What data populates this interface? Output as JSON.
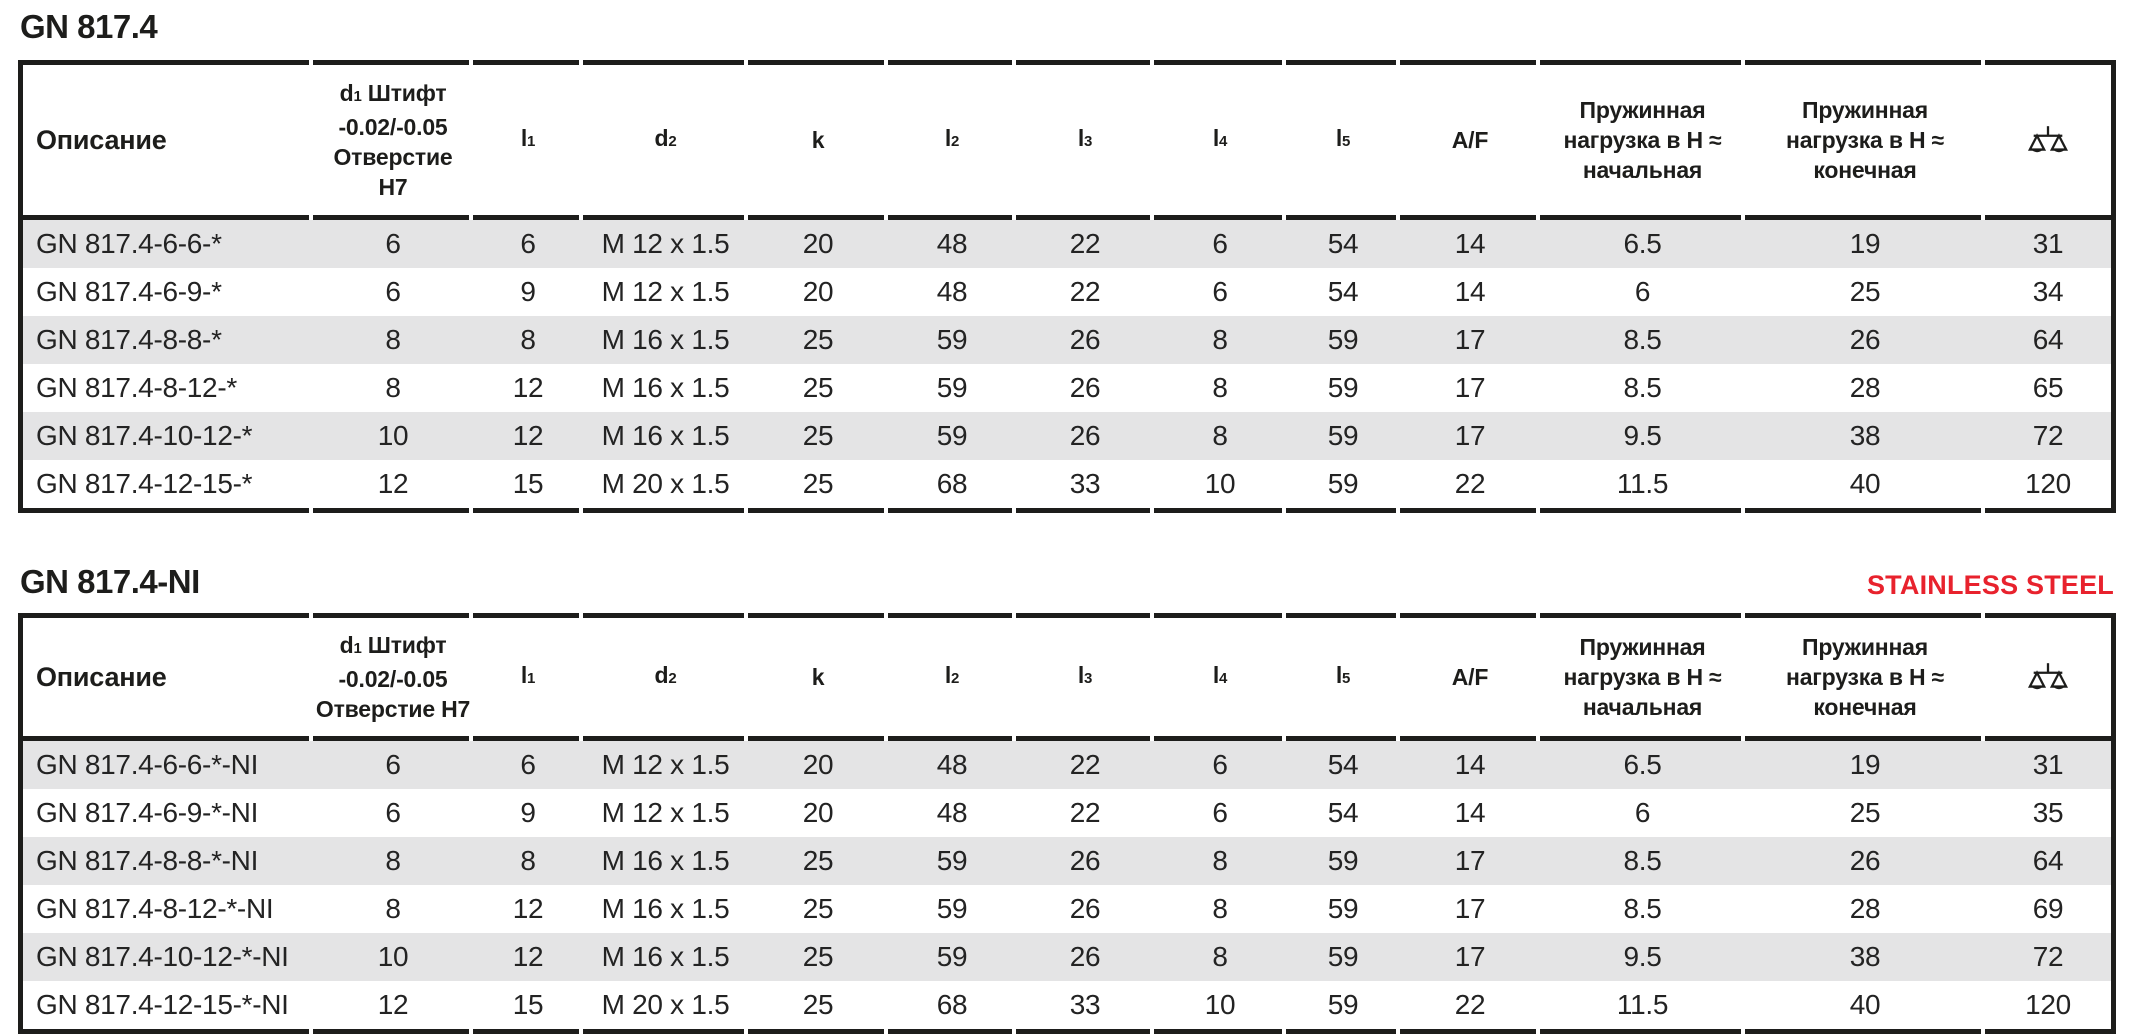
{
  "colors": {
    "ink": "#1d1d1b",
    "row_shade": "#e4e4e5",
    "stainless_red": "#e8222d"
  },
  "table1": {
    "title": "GN 817.4",
    "columns": [
      {
        "id": "description",
        "label": "Описание",
        "align": "left"
      },
      {
        "id": "d1",
        "label": "d~1~ Штифт\n-0.02/-0.05\nОтверстие\nH7"
      },
      {
        "id": "l1",
        "label": "l~1~"
      },
      {
        "id": "d2",
        "label": "d~2~"
      },
      {
        "id": "k",
        "label": "k"
      },
      {
        "id": "l2",
        "label": "l~2~"
      },
      {
        "id": "l3",
        "label": "l~3~"
      },
      {
        "id": "l4",
        "label": "l~4~"
      },
      {
        "id": "l5",
        "label": "l~5~"
      },
      {
        "id": "af",
        "label": "A/F"
      },
      {
        "id": "spring-load-initial",
        "label": "Пружинная\nнагрузка в Н ≈\nначальная"
      },
      {
        "id": "spring-load-final",
        "label": "Пружинная\nнагрузка в Н ≈\nконечная"
      },
      {
        "id": "weight",
        "label": "",
        "icon": "scales-icon"
      }
    ],
    "rows": [
      [
        "GN 817.4-6-6-*",
        "6",
        "6",
        "M 12 x 1.5",
        "20",
        "48",
        "22",
        "6",
        "54",
        "14",
        "6.5",
        "19",
        "31"
      ],
      [
        "GN 817.4-6-9-*",
        "6",
        "9",
        "M 12 x 1.5",
        "20",
        "48",
        "22",
        "6",
        "54",
        "14",
        "6",
        "25",
        "34"
      ],
      [
        "GN 817.4-8-8-*",
        "8",
        "8",
        "M 16 x 1.5",
        "25",
        "59",
        "26",
        "8",
        "59",
        "17",
        "8.5",
        "26",
        "64"
      ],
      [
        "GN 817.4-8-12-*",
        "8",
        "12",
        "M 16 x 1.5",
        "25",
        "59",
        "26",
        "8",
        "59",
        "17",
        "8.5",
        "28",
        "65"
      ],
      [
        "GN 817.4-10-12-*",
        "10",
        "12",
        "M 16 x 1.5",
        "25",
        "59",
        "26",
        "8",
        "59",
        "17",
        "9.5",
        "38",
        "72"
      ],
      [
        "GN 817.4-12-15-*",
        "12",
        "15",
        "M 20 x 1.5",
        "25",
        "68",
        "33",
        "10",
        "59",
        "22",
        "11.5",
        "40",
        "120"
      ]
    ]
  },
  "table2": {
    "title": "GN 817.4-NI",
    "badge": "STAINLESS STEEL",
    "columns": [
      {
        "id": "description",
        "label": "Описание",
        "align": "left"
      },
      {
        "id": "d1",
        "label": "d~1~ Штифт\n-0.02/-0.05\nОтверстие H7"
      },
      {
        "id": "l1",
        "label": "l~1~"
      },
      {
        "id": "d2",
        "label": "d~2~"
      },
      {
        "id": "k",
        "label": "k"
      },
      {
        "id": "l2",
        "label": "l~2~"
      },
      {
        "id": "l3",
        "label": "l~3~"
      },
      {
        "id": "l4",
        "label": "l~4~"
      },
      {
        "id": "l5",
        "label": "l~5~"
      },
      {
        "id": "af",
        "label": "A/F"
      },
      {
        "id": "spring-load-initial",
        "label": "Пружинная\nнагрузка в Н ≈\nначальная"
      },
      {
        "id": "spring-load-final",
        "label": "Пружинная\nнагрузка в Н ≈\nконечная"
      },
      {
        "id": "weight",
        "label": "",
        "icon": "scales-icon"
      }
    ],
    "rows": [
      [
        "GN 817.4-6-6-*-NI",
        "6",
        "6",
        "M 12 x 1.5",
        "20",
        "48",
        "22",
        "6",
        "54",
        "14",
        "6.5",
        "19",
        "31"
      ],
      [
        "GN 817.4-6-9-*-NI",
        "6",
        "9",
        "M 12 x 1.5",
        "20",
        "48",
        "22",
        "6",
        "54",
        "14",
        "6",
        "25",
        "35"
      ],
      [
        "GN 817.4-8-8-*-NI",
        "8",
        "8",
        "M 16 x 1.5",
        "25",
        "59",
        "26",
        "8",
        "59",
        "17",
        "8.5",
        "26",
        "64"
      ],
      [
        "GN 817.4-8-12-*-NI",
        "8",
        "12",
        "M 16 x 1.5",
        "25",
        "59",
        "26",
        "8",
        "59",
        "17",
        "8.5",
        "28",
        "69"
      ],
      [
        "GN 817.4-10-12-*-NI",
        "10",
        "12",
        "M 16 x 1.5",
        "25",
        "59",
        "26",
        "8",
        "59",
        "17",
        "9.5",
        "38",
        "72"
      ],
      [
        "GN 817.4-12-15-*-NI",
        "12",
        "15",
        "M 20 x 1.5",
        "25",
        "68",
        "33",
        "10",
        "59",
        "22",
        "11.5",
        "40",
        "120"
      ]
    ]
  }
}
